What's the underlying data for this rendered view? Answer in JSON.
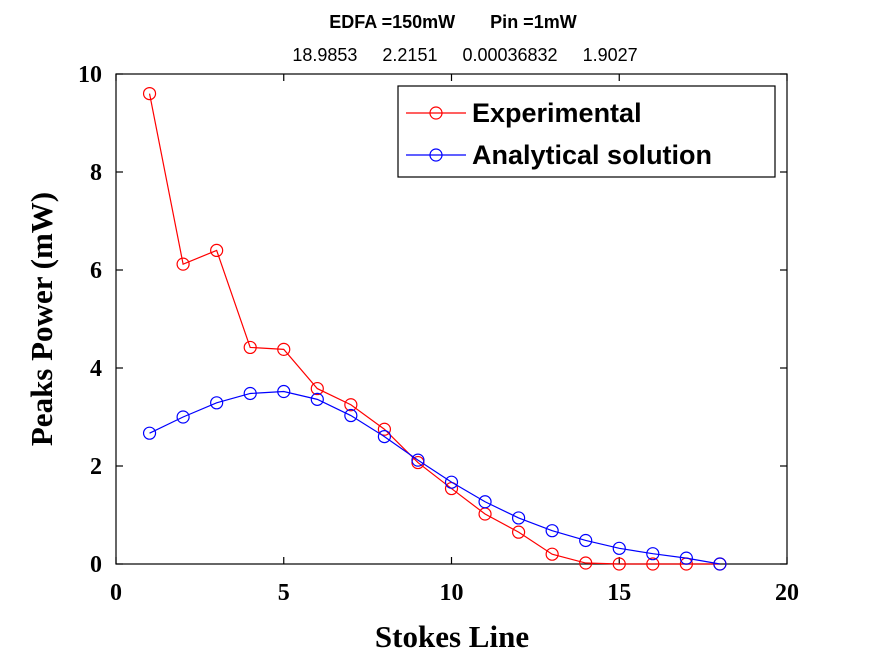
{
  "chart_data": {
    "type": "line",
    "title": "EDFA =150mW       Pin =1mW",
    "subtitle": "18.9853     2.2151     0.00036832     1.9027",
    "xlabel": "Stokes Line",
    "ylabel": "Peaks Power (mW)",
    "xlim": [
      0,
      20
    ],
    "ylim": [
      0,
      10
    ],
    "xticks": [
      0,
      5,
      10,
      15,
      20
    ],
    "yticks": [
      0,
      2,
      4,
      6,
      8,
      10
    ],
    "grid": false,
    "legend_position": "top-right",
    "series": [
      {
        "name": "Experimental",
        "color": "#ff0000",
        "marker": "circle",
        "x": [
          1,
          2,
          3,
          4,
          5,
          6,
          7,
          8,
          9,
          10,
          11,
          12,
          13,
          14,
          15,
          16,
          17,
          18
        ],
        "y": [
          9.6,
          6.12,
          6.4,
          4.42,
          4.38,
          3.58,
          3.25,
          2.75,
          2.07,
          1.54,
          1.02,
          0.65,
          0.2,
          0.02,
          0.0,
          0.0,
          0.0,
          0.0
        ]
      },
      {
        "name": "Analytical solution",
        "color": "#0000ff",
        "marker": "circle",
        "x": [
          1,
          2,
          3,
          4,
          5,
          6,
          7,
          8,
          9,
          10,
          11,
          12,
          13,
          14,
          15,
          16,
          17,
          18
        ],
        "y": [
          2.67,
          3.0,
          3.29,
          3.48,
          3.52,
          3.36,
          3.03,
          2.6,
          2.12,
          1.67,
          1.27,
          0.94,
          0.68,
          0.48,
          0.32,
          0.21,
          0.12,
          0.0
        ]
      }
    ]
  }
}
